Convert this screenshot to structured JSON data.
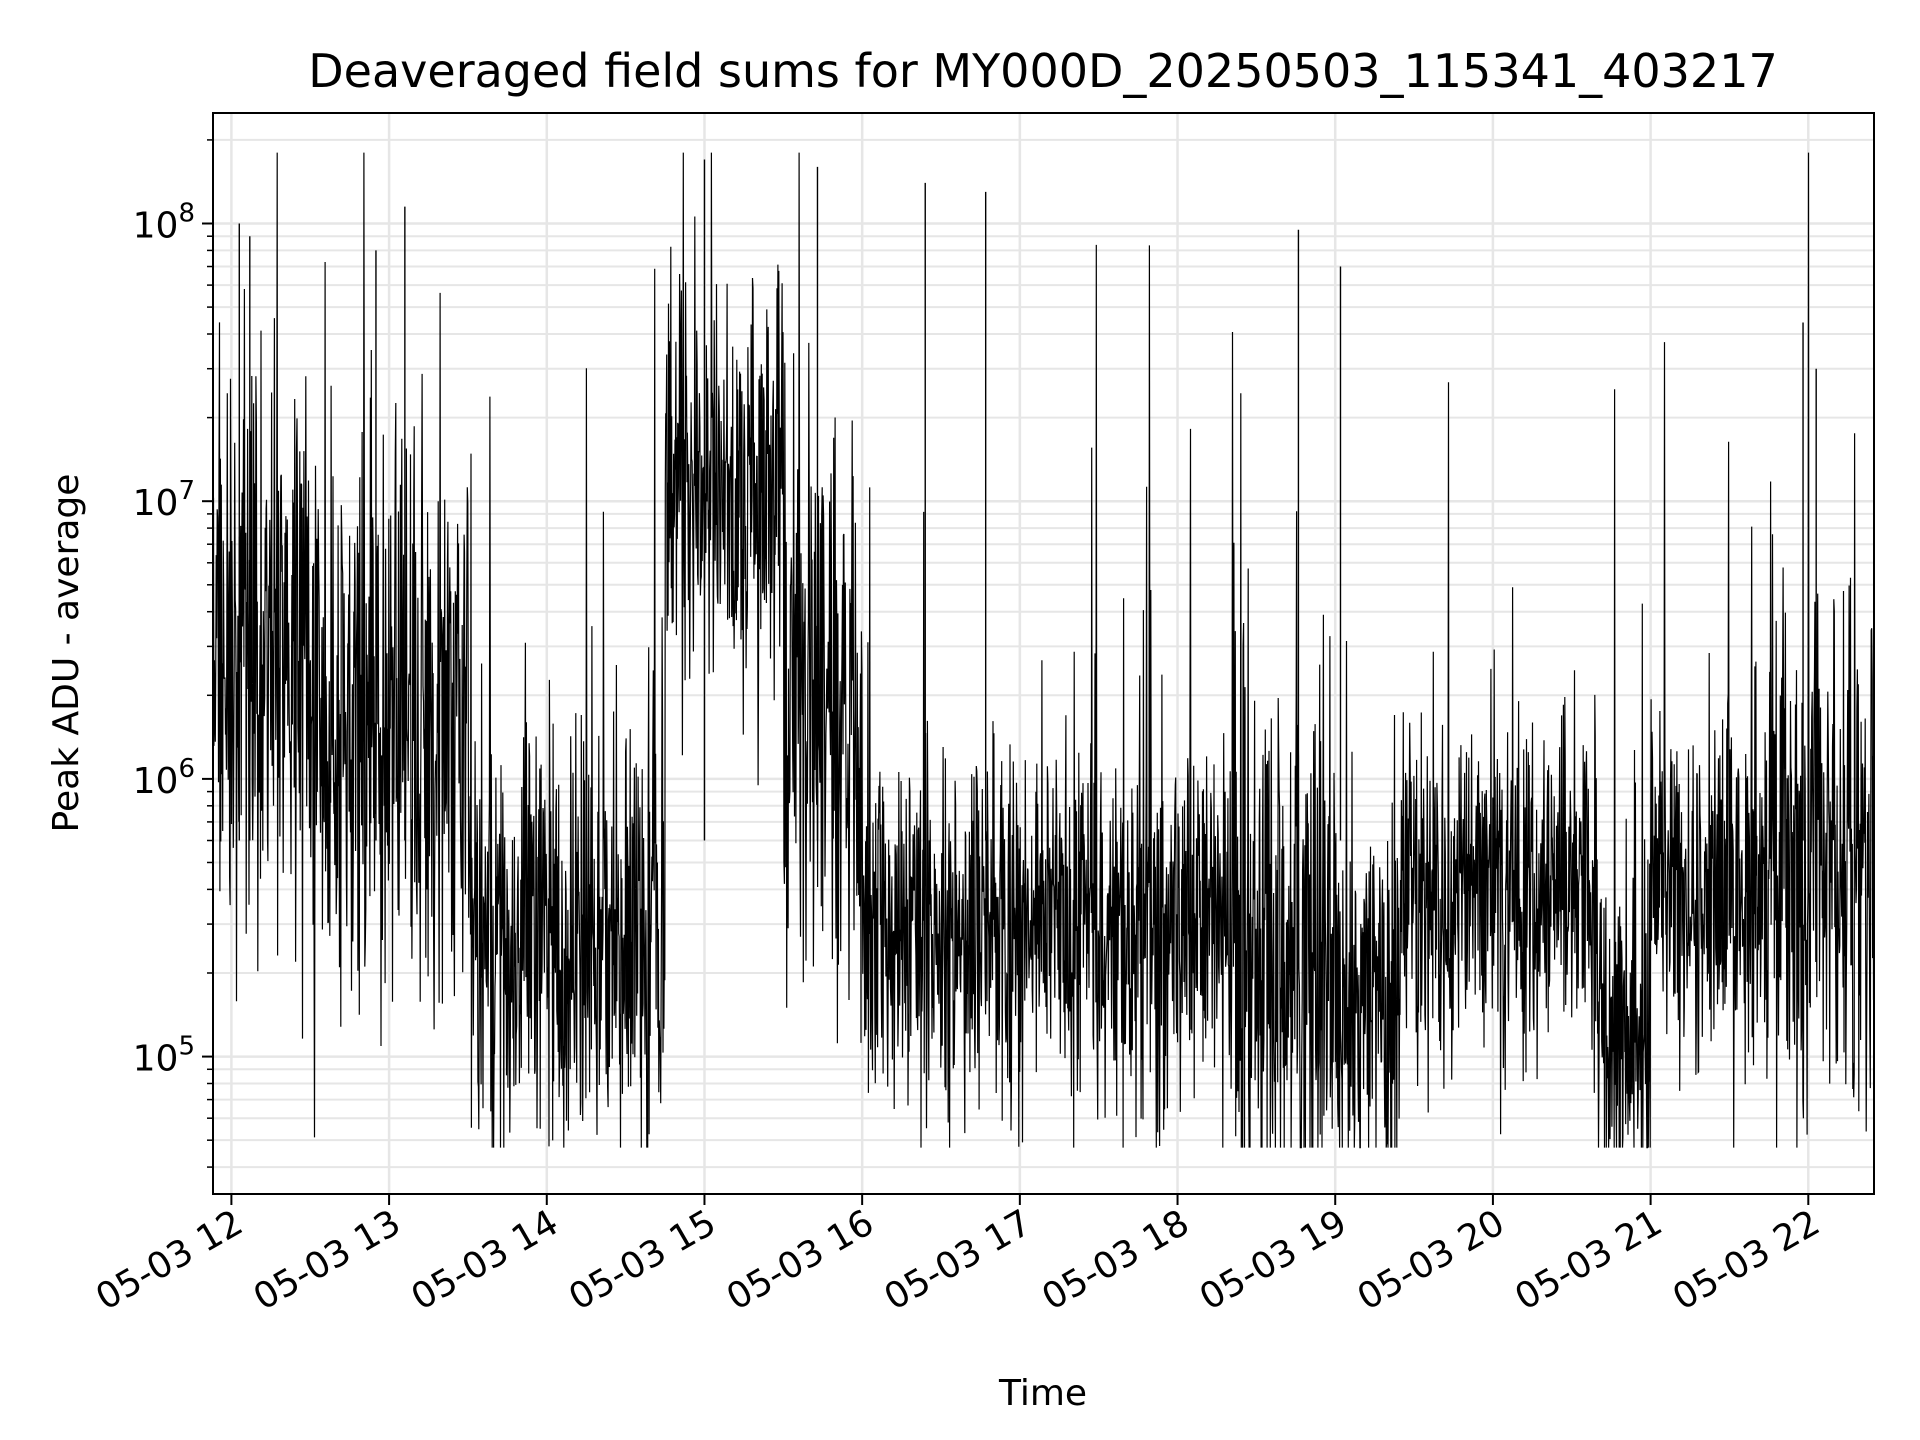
{
  "chart_data": {
    "type": "line",
    "title": "Deaveraged field sums for MY000D_20250503_115341_403217",
    "xlabel": "Time",
    "ylabel": "Peak ADU - average",
    "x_range": [
      "2025-05-03 11:53",
      "2025-05-03 22:25"
    ],
    "y_scale": "log",
    "ylim": [
      32000,
      250000000
    ],
    "x_tick_labels": [
      "05-03 12",
      "05-03 13",
      "05-03 14",
      "05-03 15",
      "05-03 16",
      "05-03 17",
      "05-03 18",
      "05-03 19",
      "05-03 20",
      "05-03 21",
      "05-03 22"
    ],
    "y_ticks": [
      {
        "base": "10",
        "exp": "5",
        "value": 100000
      },
      {
        "base": "10",
        "exp": "6",
        "value": 1000000
      },
      {
        "base": "10",
        "exp": "7",
        "value": 10000000
      },
      {
        "base": "10",
        "exp": "8",
        "value": 100000000
      }
    ],
    "grid": true,
    "line_color": "#000000",
    "grid_color": "#e6e6e6",
    "series": [
      {
        "segments": [
          {
            "start": "2025-05-03 11:53",
            "end": "2025-05-03 12:30",
            "level": 3000000,
            "spread": 2.3
          },
          {
            "start": "2025-05-03 12:30",
            "end": "2025-05-03 13:30",
            "level": 1500000,
            "spread": 2.4
          },
          {
            "start": "2025-05-03 13:30",
            "end": "2025-05-03 14:00",
            "level": 300000,
            "spread": 1.8
          },
          {
            "start": "2025-05-03 14:00",
            "end": "2025-05-03 14:45",
            "level": 250000,
            "spread": 1.9
          },
          {
            "start": "2025-05-03 14:45",
            "end": "2025-05-03 15:30",
            "level": 12000000,
            "spread": 1.8
          },
          {
            "start": "2025-05-03 15:30",
            "end": "2025-05-03 16:00",
            "level": 2000000,
            "spread": 2.5
          },
          {
            "start": "2025-05-03 16:00",
            "end": "2025-05-03 18:20",
            "level": 300000,
            "spread": 1.6
          },
          {
            "start": "2025-05-03 18:20",
            "end": "2025-05-03 19:00",
            "level": 250000,
            "spread": 2.6
          },
          {
            "start": "2025-05-03 19:00",
            "end": "2025-05-03 19:25",
            "level": 150000,
            "spread": 1.8
          },
          {
            "start": "2025-05-03 19:25",
            "end": "2025-05-03 20:40",
            "level": 400000,
            "spread": 1.5
          },
          {
            "start": "2025-05-03 20:40",
            "end": "2025-05-03 21:00",
            "level": 120000,
            "spread": 1.8
          },
          {
            "start": "2025-05-03 21:00",
            "end": "2025-05-03 21:45",
            "level": 400000,
            "spread": 1.6
          },
          {
            "start": "2025-05-03 21:45",
            "end": "2025-05-03 22:25",
            "level": 500000,
            "spread": 2.3
          }
        ],
        "peaks": [
          {
            "t": "2025-05-03 12:03",
            "value": 100000000
          },
          {
            "t": "2025-05-03 12:07",
            "value": 90000000
          },
          {
            "t": "2025-05-03 12:55",
            "value": 80000000
          },
          {
            "t": "2025-05-03 13:06",
            "value": 115000000
          },
          {
            "t": "2025-05-03 15:00",
            "value": 170000000
          },
          {
            "t": "2025-05-03 15:43",
            "value": 160000000
          },
          {
            "t": "2025-05-03 16:24",
            "value": 140000000
          },
          {
            "t": "2025-05-03 16:47",
            "value": 130000000
          },
          {
            "t": "2025-05-03 18:46",
            "value": 95000000
          },
          {
            "t": "2025-05-03 19:02",
            "value": 70000000
          },
          {
            "t": "2025-05-03 21:58",
            "value": 44000000
          },
          {
            "t": "2025-05-03 22:03",
            "value": 30000000
          }
        ]
      }
    ]
  }
}
